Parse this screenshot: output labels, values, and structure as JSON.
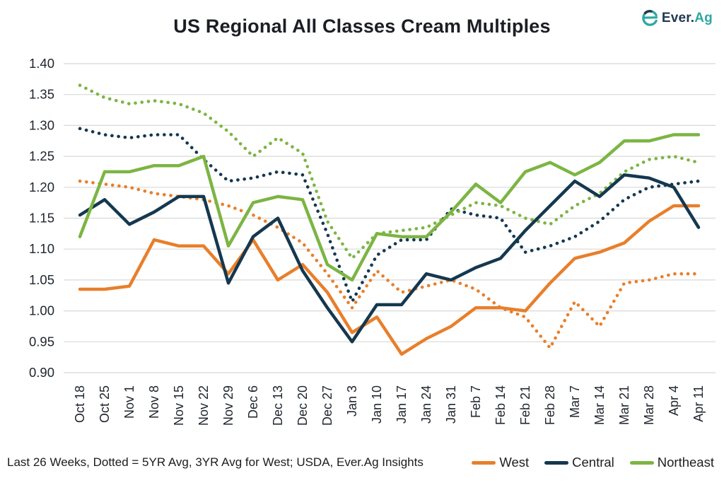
{
  "header": {
    "logo": {
      "prefix": "Ever.",
      "suffix": "Ag",
      "icon": "ever-ag-e-mark",
      "navy": "#20394f",
      "teal": "#2da8a1"
    }
  },
  "footer": {
    "note": "Last 26 Weeks, Dotted = 5YR Avg, 3YR Avg for West; USDA, Ever.Ag Insights"
  },
  "chart_data": {
    "type": "line",
    "title": "US Regional All Classes Cream Multiples",
    "xlabel": "",
    "ylabel": "",
    "ylim": [
      0.9,
      1.4
    ],
    "y_tick_step": 0.05,
    "y_tick_labels": [
      "0.90",
      "0.95",
      "1.00",
      "1.05",
      "1.10",
      "1.15",
      "1.20",
      "1.25",
      "1.30",
      "1.35",
      "1.40"
    ],
    "grid": "horizontal",
    "grid_color": "#d8d8d8",
    "axis_text_color": "#20262e",
    "legend_position": "bottom-right",
    "legend_entries": [
      "West",
      "Central",
      "Northeast"
    ],
    "categories": [
      "Oct 18",
      "Oct 25",
      "Nov 1",
      "Nov 8",
      "Nov 15",
      "Nov 22",
      "Nov 29",
      "Dec 6",
      "Dec 13",
      "Dec 20",
      "Dec 27",
      "Jan 3",
      "Jan 10",
      "Jan 17",
      "Jan 24",
      "Jan 31",
      "Feb 7",
      "Feb 14",
      "Feb 21",
      "Feb 28",
      "Mar 7",
      "Mar 14",
      "Mar 21",
      "Mar 28",
      "Apr 4",
      "Apr 11"
    ],
    "series": [
      {
        "name": "West",
        "style": "solid",
        "color": "#e87f2b",
        "values": [
          1.035,
          1.035,
          1.04,
          1.115,
          1.105,
          1.105,
          1.06,
          1.115,
          1.05,
          1.075,
          1.03,
          0.965,
          0.99,
          0.93,
          0.955,
          0.975,
          1.005,
          1.005,
          1.0,
          1.045,
          1.085,
          1.095,
          1.11,
          1.145,
          1.17,
          1.17
        ]
      },
      {
        "name": "Central",
        "style": "solid",
        "color": "#14384f",
        "values": [
          1.155,
          1.18,
          1.14,
          1.16,
          1.185,
          1.185,
          1.045,
          1.12,
          1.15,
          1.065,
          1.005,
          0.95,
          1.01,
          1.01,
          1.06,
          1.05,
          1.07,
          1.085,
          1.13,
          1.17,
          1.21,
          1.185,
          1.22,
          1.215,
          1.2,
          1.135
        ]
      },
      {
        "name": "Northeast",
        "style": "solid",
        "color": "#7cb543",
        "values": [
          1.12,
          1.225,
          1.225,
          1.235,
          1.235,
          1.25,
          1.105,
          1.175,
          1.185,
          1.18,
          1.075,
          1.05,
          1.125,
          1.12,
          1.12,
          1.16,
          1.205,
          1.175,
          1.225,
          1.24,
          1.22,
          1.24,
          1.275,
          1.275,
          1.285,
          1.285
        ]
      },
      {
        "name": "West 3YR Avg",
        "style": "dotted",
        "color": "#e87f2b",
        "values": [
          1.21,
          1.205,
          1.2,
          1.19,
          1.185,
          1.18,
          1.17,
          1.155,
          1.135,
          1.11,
          1.06,
          1.005,
          1.065,
          1.03,
          1.04,
          1.05,
          1.035,
          1.005,
          0.99,
          0.94,
          1.015,
          0.975,
          1.045,
          1.05,
          1.06,
          1.06
        ]
      },
      {
        "name": "Central 5YR Avg",
        "style": "dotted",
        "color": "#14384f",
        "values": [
          1.295,
          1.285,
          1.28,
          1.285,
          1.285,
          1.245,
          1.21,
          1.215,
          1.225,
          1.22,
          1.125,
          1.015,
          1.09,
          1.115,
          1.115,
          1.165,
          1.155,
          1.15,
          1.095,
          1.105,
          1.12,
          1.145,
          1.18,
          1.2,
          1.205,
          1.21
        ]
      },
      {
        "name": "Northeast 5YR Avg",
        "style": "dotted",
        "color": "#7cb543",
        "values": [
          1.365,
          1.345,
          1.335,
          1.34,
          1.335,
          1.32,
          1.29,
          1.25,
          1.28,
          1.255,
          1.145,
          1.085,
          1.125,
          1.13,
          1.135,
          1.155,
          1.175,
          1.17,
          1.15,
          1.14,
          1.17,
          1.19,
          1.225,
          1.245,
          1.25,
          1.24
        ]
      }
    ]
  }
}
